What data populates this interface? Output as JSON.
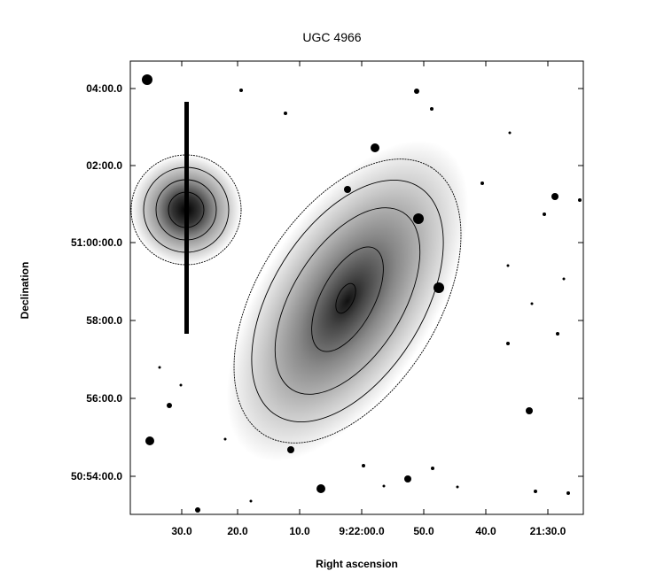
{
  "title": "UGC 4966",
  "axes": {
    "xlabel": "Right ascension",
    "ylabel": "Declination",
    "xticks": [
      "30.0",
      "20.0",
      "10.0",
      "9:22:00.0",
      "50.0",
      "40.0",
      "21:30.0"
    ],
    "yticks": [
      "04:00.0",
      "02:00.0",
      "51:00:00.0",
      "58:00.0",
      "56:00.0",
      "50:54:00.0"
    ]
  },
  "image": {
    "description_icon": "galaxy-image",
    "colormap": "inverted-grayscale",
    "contours": true
  }
}
